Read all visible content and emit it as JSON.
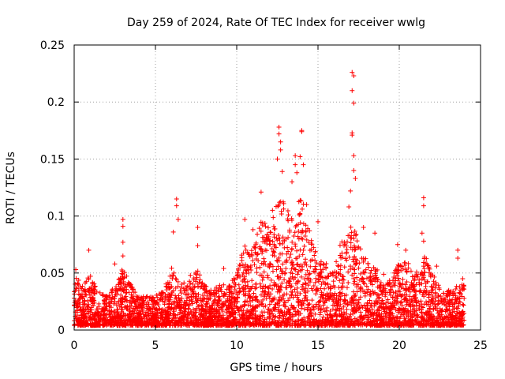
{
  "chart_data": {
    "type": "scatter",
    "title": "Day 259 of 2024, Rate Of TEC Index for receiver wwlg",
    "xlabel": "GPS time / hours",
    "ylabel": "ROTI / TECUs",
    "xlim": [
      0,
      25
    ],
    "ylim": [
      0,
      0.25
    ],
    "xticks": [
      0,
      5,
      10,
      15,
      20,
      25
    ],
    "yticks": [
      0,
      0.05,
      0.1,
      0.15,
      0.2,
      0.25
    ],
    "xtick_labels": [
      "0",
      "5",
      "10",
      "15",
      "20",
      "25"
    ],
    "ytick_labels": [
      "0",
      "0.05",
      "0.1",
      "0.15",
      "0.2",
      "0.25"
    ],
    "grid": true,
    "marker": "+",
    "series": [
      {
        "name": "ROTI",
        "color": "#ff0000",
        "envelope_x": [
          0,
          0.5,
          1.0,
          1.5,
          2.0,
          2.5,
          3.0,
          3.5,
          4.0,
          4.5,
          5.0,
          5.5,
          6.0,
          6.5,
          7.0,
          7.5,
          8.0,
          8.5,
          9.0,
          9.5,
          10.0,
          10.5,
          11.0,
          11.5,
          12.0,
          12.5,
          13.0,
          13.5,
          14.0,
          14.5,
          15.0,
          15.5,
          16.0,
          16.5,
          17.0,
          17.5,
          18.0,
          18.5,
          19.0,
          19.5,
          20.0,
          20.5,
          21.0,
          21.5,
          22.0,
          22.5,
          23.0,
          23.5,
          24.0
        ],
        "envelope_y": [
          0.05,
          0.04,
          0.05,
          0.035,
          0.03,
          0.04,
          0.055,
          0.04,
          0.03,
          0.03,
          0.03,
          0.035,
          0.055,
          0.04,
          0.045,
          0.055,
          0.04,
          0.035,
          0.04,
          0.04,
          0.05,
          0.08,
          0.07,
          0.1,
          0.09,
          0.12,
          0.11,
          0.1,
          0.12,
          0.09,
          0.07,
          0.06,
          0.06,
          0.08,
          0.1,
          0.08,
          0.06,
          0.055,
          0.05,
          0.045,
          0.06,
          0.06,
          0.05,
          0.07,
          0.05,
          0.04,
          0.035,
          0.04,
          0.04
        ],
        "points": [
          {
            "x": 0.1,
            "y": 0.053
          },
          {
            "x": 0.9,
            "y": 0.07
          },
          {
            "x": 3.0,
            "y": 0.097
          },
          {
            "x": 3.0,
            "y": 0.091
          },
          {
            "x": 3.0,
            "y": 0.077
          },
          {
            "x": 3.0,
            "y": 0.065
          },
          {
            "x": 2.5,
            "y": 0.058
          },
          {
            "x": 6.3,
            "y": 0.115
          },
          {
            "x": 6.3,
            "y": 0.109
          },
          {
            "x": 6.4,
            "y": 0.097
          },
          {
            "x": 6.1,
            "y": 0.086
          },
          {
            "x": 7.6,
            "y": 0.09
          },
          {
            "x": 7.6,
            "y": 0.074
          },
          {
            "x": 9.2,
            "y": 0.054
          },
          {
            "x": 10.5,
            "y": 0.097
          },
          {
            "x": 11.0,
            "y": 0.088
          },
          {
            "x": 11.5,
            "y": 0.121
          },
          {
            "x": 12.2,
            "y": 0.105
          },
          {
            "x": 12.6,
            "y": 0.178
          },
          {
            "x": 12.6,
            "y": 0.172
          },
          {
            "x": 12.7,
            "y": 0.165
          },
          {
            "x": 12.7,
            "y": 0.158
          },
          {
            "x": 12.5,
            "y": 0.15
          },
          {
            "x": 12.8,
            "y": 0.139
          },
          {
            "x": 13.6,
            "y": 0.153
          },
          {
            "x": 13.6,
            "y": 0.145
          },
          {
            "x": 13.7,
            "y": 0.138
          },
          {
            "x": 13.9,
            "y": 0.152
          },
          {
            "x": 14.0,
            "y": 0.175
          },
          {
            "x": 14.0,
            "y": 0.174
          },
          {
            "x": 14.1,
            "y": 0.145
          },
          {
            "x": 13.4,
            "y": 0.13
          },
          {
            "x": 14.3,
            "y": 0.11
          },
          {
            "x": 15.0,
            "y": 0.095
          },
          {
            "x": 17.1,
            "y": 0.226
          },
          {
            "x": 17.2,
            "y": 0.223
          },
          {
            "x": 17.1,
            "y": 0.21
          },
          {
            "x": 17.2,
            "y": 0.199
          },
          {
            "x": 17.1,
            "y": 0.173
          },
          {
            "x": 17.1,
            "y": 0.171
          },
          {
            "x": 17.2,
            "y": 0.153
          },
          {
            "x": 17.2,
            "y": 0.14
          },
          {
            "x": 17.3,
            "y": 0.133
          },
          {
            "x": 17.0,
            "y": 0.122
          },
          {
            "x": 16.9,
            "y": 0.108
          },
          {
            "x": 17.8,
            "y": 0.09
          },
          {
            "x": 18.5,
            "y": 0.085
          },
          {
            "x": 19.9,
            "y": 0.075
          },
          {
            "x": 20.4,
            "y": 0.07
          },
          {
            "x": 21.5,
            "y": 0.116
          },
          {
            "x": 21.5,
            "y": 0.109
          },
          {
            "x": 21.4,
            "y": 0.085
          },
          {
            "x": 21.5,
            "y": 0.078
          },
          {
            "x": 22.3,
            "y": 0.056
          },
          {
            "x": 23.6,
            "y": 0.07
          },
          {
            "x": 23.6,
            "y": 0.063
          },
          {
            "x": 23.9,
            "y": 0.045
          }
        ]
      }
    ]
  }
}
